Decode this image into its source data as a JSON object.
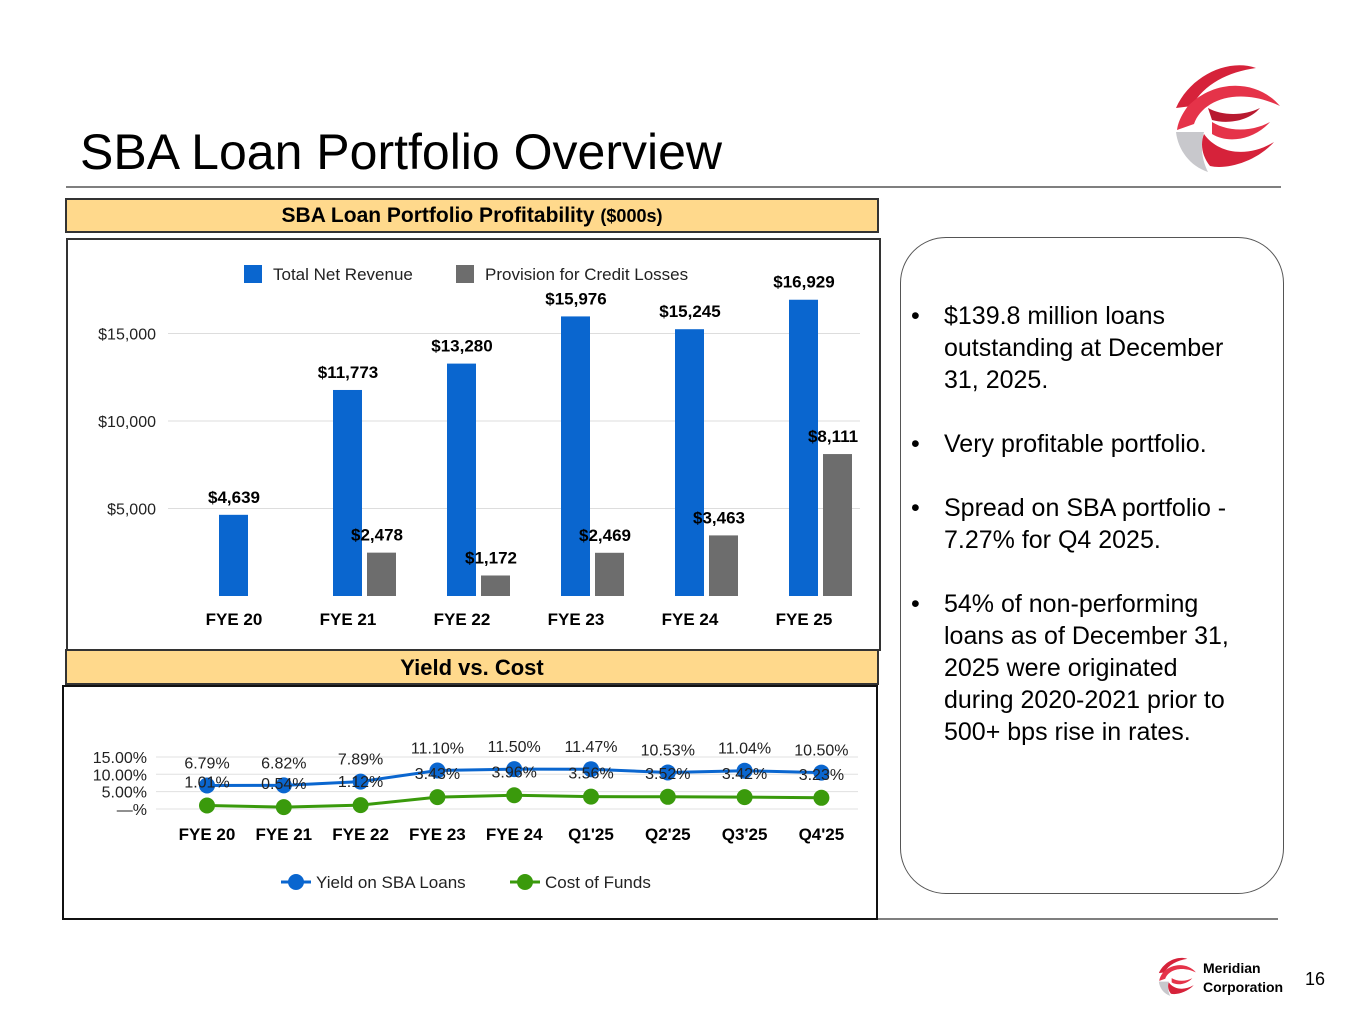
{
  "title": "SBA Loan Portfolio Overview",
  "brand": {
    "name_line1": "Meridian",
    "name_line2": "Corporation",
    "color": "#d6223a"
  },
  "page_number": "16",
  "colors": {
    "header_fill": "#ffd98c",
    "revenue": "#0a66cf",
    "provision": "#6d6d6d",
    "yield": "#0a66cf",
    "cost": "#3a9a0c"
  },
  "profitability_header": {
    "title": "SBA Loan Portfolio Profitability",
    "unit": "($000s)"
  },
  "yield_header": {
    "title": "Yield vs. Cost"
  },
  "chart_data": [
    {
      "type": "bar",
      "title": "SBA Loan Portfolio Profitability ($000s)",
      "categories": [
        "FYE 20",
        "FYE 21",
        "FYE 22",
        "FYE 23",
        "FYE 24",
        "FYE 25"
      ],
      "series": [
        {
          "name": "Total Net Revenue",
          "values": [
            4639,
            11773,
            13280,
            15976,
            15245,
            16929
          ],
          "labels": [
            "$4,639",
            "$11,773",
            "$13,280",
            "$15,976",
            "$15,245",
            "$16,929"
          ]
        },
        {
          "name": "Provision for Credit Losses",
          "values": [
            0,
            2478,
            1172,
            2469,
            3463,
            8111
          ],
          "labels": [
            "",
            "$2,478",
            "$1,172",
            "$2,469",
            "$3,463",
            "$8,111"
          ]
        }
      ],
      "yticks": [
        5000,
        10000,
        15000
      ],
      "ytick_labels": [
        "$5,000",
        "$10,000",
        "$15,000"
      ],
      "ylim": [
        0,
        18000
      ],
      "grid": true,
      "legend": "top-center"
    },
    {
      "type": "line",
      "title": "Yield vs. Cost",
      "categories": [
        "FYE 20",
        "FYE 21",
        "FYE 22",
        "FYE 23",
        "FYE 24",
        "Q1'25",
        "Q2'25",
        "Q3'25",
        "Q4'25"
      ],
      "series": [
        {
          "name": "Yield on SBA Loans",
          "values": [
            6.79,
            6.82,
            7.89,
            11.1,
            11.5,
            11.47,
            10.53,
            11.04,
            10.5
          ],
          "labels": [
            "6.79%",
            "6.82%",
            "7.89%",
            "11.10%",
            "11.50%",
            "11.47%",
            "10.53%",
            "11.04%",
            "10.50%"
          ]
        },
        {
          "name": "Cost of Funds",
          "values": [
            1.01,
            0.54,
            1.12,
            3.43,
            3.96,
            3.56,
            3.52,
            3.42,
            3.23
          ],
          "labels": [
            "1.01%",
            "0.54%",
            "1.12%",
            "3.43%",
            "3.96%",
            "3.56%",
            "3.52%",
            "3.42%",
            "3.23%"
          ]
        }
      ],
      "yticks": [
        0,
        5,
        10,
        15
      ],
      "ytick_labels": [
        "—%",
        "5.00%",
        "10.00%",
        "15.00%"
      ],
      "ylim": [
        0,
        15
      ],
      "grid": true,
      "legend": "bottom-center"
    }
  ],
  "bullets": [
    "$139.8 million loans outstanding at December 31, 2025.",
    "Very profitable portfolio.",
    "Spread on SBA portfolio - 7.27% for Q4 2025.",
    "54% of non-performing loans as of December 31, 2025 were originated during 2020-2021 prior to 500+ bps rise in rates."
  ]
}
